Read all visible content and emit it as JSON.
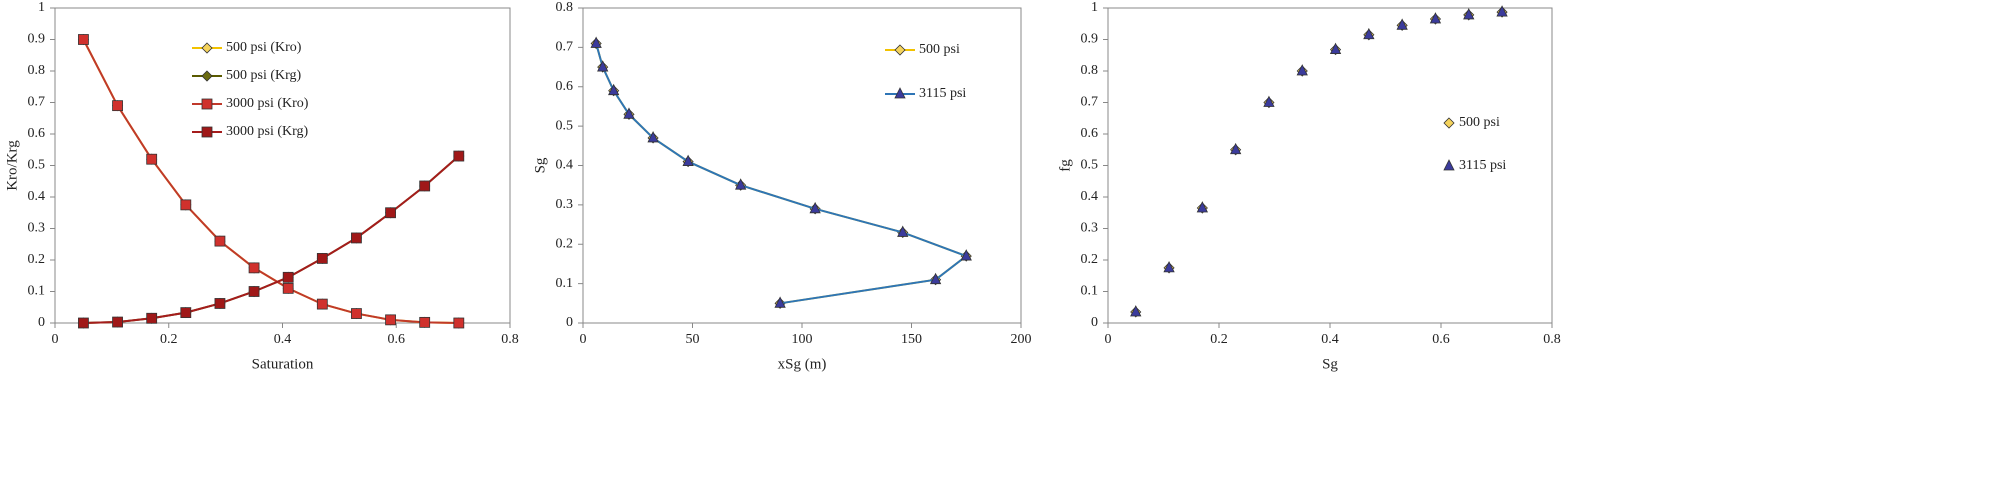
{
  "chart_data": [
    {
      "type": "line",
      "x_label": "Saturation",
      "y_label": "Kro/Krg",
      "xlim": [
        0,
        0.8
      ],
      "xticks": [
        0,
        0.2,
        0.4,
        0.6,
        0.8
      ],
      "ylim": [
        0,
        1
      ],
      "yticks": [
        0,
        0.1,
        0.2,
        0.3,
        0.4,
        0.5,
        0.6,
        0.7,
        0.8,
        0.9,
        1
      ],
      "series": [
        {
          "name": "500 psi (Kro)",
          "color": "#f2c200",
          "marker_color": "#f5d35c",
          "marker": "diamond",
          "x": [
            0.05,
            0.11,
            0.17,
            0.23,
            0.29,
            0.35,
            0.41,
            0.47,
            0.53,
            0.59,
            0.65,
            0.71
          ],
          "values": [
            0.9,
            0.69,
            0.52,
            0.375,
            0.26,
            0.175,
            0.11,
            0.06,
            0.03,
            0.01,
            0.002,
            0
          ]
        },
        {
          "name": "500 psi (Krg)",
          "color": "#5a5a00",
          "marker_color": "#6b6b10",
          "marker": "diamond",
          "x": [
            0.05,
            0.11,
            0.17,
            0.23,
            0.29,
            0.35,
            0.41,
            0.47,
            0.53,
            0.59,
            0.65,
            0.71
          ],
          "values": [
            0,
            0.003,
            0.015,
            0.033,
            0.062,
            0.1,
            0.145,
            0.205,
            0.27,
            0.35,
            0.435,
            0.53
          ]
        },
        {
          "name": "3000 psi (Kro)",
          "color": "#c0392b",
          "marker_color": "#d0312d",
          "marker": "square",
          "x": [
            0.05,
            0.11,
            0.17,
            0.23,
            0.29,
            0.35,
            0.41,
            0.47,
            0.53,
            0.59,
            0.65,
            0.71
          ],
          "values": [
            0.9,
            0.69,
            0.52,
            0.375,
            0.26,
            0.175,
            0.11,
            0.06,
            0.03,
            0.01,
            0.002,
            0
          ]
        },
        {
          "name": "3000 psi (Krg)",
          "color": "#a51c1c",
          "marker_color": "#a01818",
          "marker": "square",
          "x": [
            0.05,
            0.11,
            0.17,
            0.23,
            0.29,
            0.35,
            0.41,
            0.47,
            0.53,
            0.59,
            0.65,
            0.71
          ],
          "values": [
            0,
            0.003,
            0.015,
            0.033,
            0.062,
            0.1,
            0.145,
            0.205,
            0.27,
            0.35,
            0.435,
            0.53
          ]
        }
      ]
    },
    {
      "type": "line",
      "x_label": "xSg (m)",
      "y_label": "Sg",
      "xlim": [
        0,
        200
      ],
      "xticks": [
        0,
        50,
        100,
        150,
        200
      ],
      "ylim": [
        0,
        0.8
      ],
      "yticks": [
        0,
        0.1,
        0.2,
        0.3,
        0.4,
        0.5,
        0.6,
        0.7,
        0.8
      ],
      "series": [
        {
          "name": "500 psi",
          "color": "#f2c200",
          "marker_color": "#f5d35c",
          "marker": "diamond",
          "x": [
            90,
            161,
            175,
            146,
            106,
            72,
            48,
            32,
            21,
            14,
            9,
            6
          ],
          "values": [
            0.05,
            0.11,
            0.17,
            0.23,
            0.29,
            0.35,
            0.41,
            0.47,
            0.53,
            0.59,
            0.65,
            0.71
          ]
        },
        {
          "name": "3115 psi",
          "color": "#2e75b6",
          "marker_color": "#3b3b9c",
          "marker": "triangle",
          "x": [
            90,
            161,
            175,
            146,
            106,
            72,
            48,
            32,
            21,
            14,
            9,
            6
          ],
          "values": [
            0.05,
            0.11,
            0.17,
            0.23,
            0.29,
            0.35,
            0.41,
            0.47,
            0.53,
            0.59,
            0.65,
            0.71
          ]
        }
      ]
    },
    {
      "type": "scatter",
      "x_label": "Sg",
      "y_label": "fg",
      "xlim": [
        0,
        0.8
      ],
      "xticks": [
        0,
        0.2,
        0.4,
        0.6,
        0.8
      ],
      "ylim": [
        0,
        1
      ],
      "yticks": [
        0,
        0.1,
        0.2,
        0.3,
        0.4,
        0.5,
        0.6,
        0.7,
        0.8,
        0.9,
        1
      ],
      "series": [
        {
          "name": "500 psi",
          "color": "#f2c200",
          "marker_color": "#f5d35c",
          "marker": "diamond",
          "x": [
            0.05,
            0.11,
            0.17,
            0.23,
            0.29,
            0.35,
            0.41,
            0.47,
            0.53,
            0.59,
            0.65,
            0.71
          ],
          "values": [
            0.035,
            0.175,
            0.365,
            0.55,
            0.7,
            0.8,
            0.868,
            0.915,
            0.945,
            0.965,
            0.978,
            0.987
          ]
        },
        {
          "name": "3115 psi",
          "color": "#2e75b6",
          "marker_color": "#3b3b9c",
          "marker": "triangle",
          "x": [
            0.05,
            0.11,
            0.17,
            0.23,
            0.29,
            0.35,
            0.41,
            0.47,
            0.53,
            0.59,
            0.65,
            0.71
          ],
          "values": [
            0.035,
            0.175,
            0.365,
            0.55,
            0.7,
            0.8,
            0.868,
            0.915,
            0.945,
            0.965,
            0.978,
            0.987
          ]
        }
      ]
    }
  ]
}
